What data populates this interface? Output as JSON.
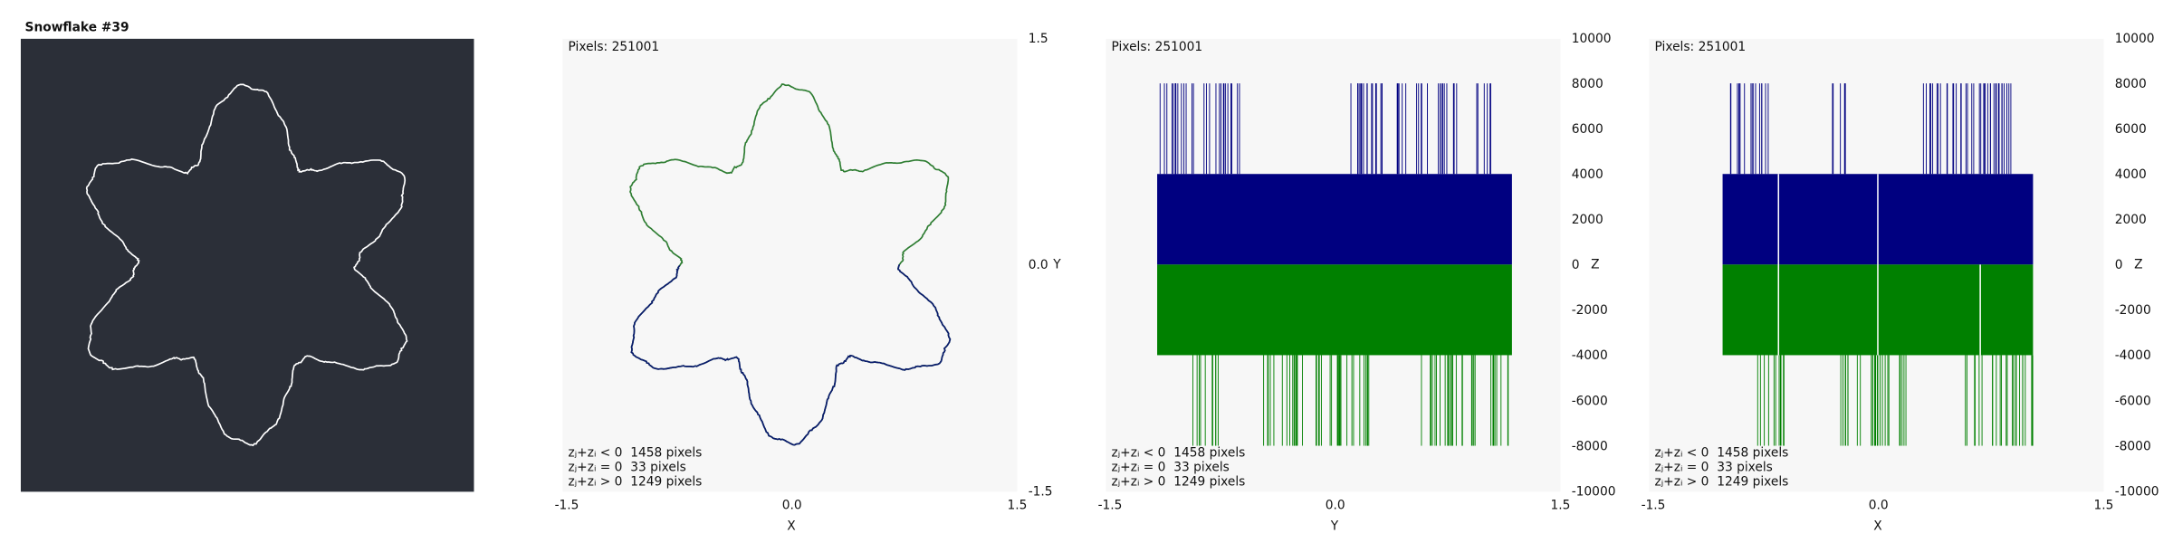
{
  "panels": [
    {
      "title": "Snowflake #39"
    },
    {
      "caption": "Pixels: 251001",
      "legend": [
        "zⱼ+zᵢ < 0  1458 pixels",
        "zⱼ+zᵢ = 0  33 pixels",
        "zⱼ+zᵢ > 0  1249 pixels"
      ],
      "right_ticks": [
        "1.5",
        "0.0",
        "-1.5"
      ],
      "right_axis_label": "Y",
      "bottom_ticks": [
        "-1.5",
        "0.0",
        "1.5"
      ],
      "bottom_axis_label": "X"
    },
    {
      "caption": "Pixels: 251001",
      "legend": [
        "zⱼ+zᵢ < 0  1458 pixels",
        "zⱼ+zᵢ = 0  33 pixels",
        "zⱼ+zᵢ > 0  1249 pixels"
      ],
      "right_ticks": [
        "10000",
        "8000",
        "6000",
        "4000",
        "2000",
        "0",
        "-2000",
        "-4000",
        "-6000",
        "-8000",
        "-10000"
      ],
      "right_axis_label": "Z",
      "bottom_ticks": [
        "-1.5",
        "0.0",
        "1.5"
      ],
      "bottom_axis_label": "Y"
    },
    {
      "caption": "Pixels: 251001",
      "legend": [
        "zⱼ+zᵢ < 0  1458 pixels",
        "zⱼ+zᵢ = 0  33 pixels",
        "zⱼ+zᵢ > 0  1249 pixels"
      ],
      "right_ticks": [
        "10000",
        "8000",
        "6000",
        "4000",
        "2000",
        "0",
        "-2000",
        "-4000",
        "-6000",
        "-8000",
        "-10000"
      ],
      "right_axis_label": "Z",
      "bottom_ticks": [
        "-1.5",
        "0.0",
        "1.5"
      ],
      "bottom_axis_label": "X"
    }
  ]
}
